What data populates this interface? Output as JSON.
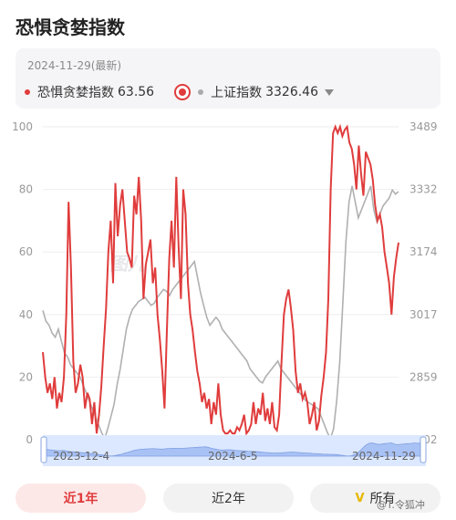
{
  "page": {
    "title": "恐惧贪婪指数"
  },
  "summary": {
    "date": "2024-11-29(最新)",
    "fear_label": "恐惧贪婪指数",
    "fear_value": "63.56",
    "index_label": "上证指数",
    "index_value": "3326.46"
  },
  "colors": {
    "fear": "#e03c3c",
    "index": "#b0b0b0",
    "accent": "#e03c3c",
    "navigator": "#dce8ff"
  },
  "navigator": {
    "start": "2023-12-4",
    "mid": "2024-6-5",
    "end": "2024-11-29"
  },
  "tabs": {
    "one_year": "近1年",
    "two_year": "近2年",
    "all": "所有"
  },
  "watermark": {
    "chart": "图儿",
    "corner": "@T.令狐冲"
  },
  "chart_data": {
    "type": "line",
    "left_axis": {
      "ticks": [
        "100",
        "80",
        "60",
        "40",
        "20",
        "0"
      ],
      "range": [
        0,
        100
      ]
    },
    "right_axis": {
      "ticks": [
        "3489",
        "3332",
        "3174",
        "3017",
        "2859",
        "2702"
      ],
      "range": [
        2702,
        3489
      ]
    },
    "x_range": [
      "2023-12-04",
      "2024-11-29"
    ],
    "series": [
      {
        "name": "恐惧贪婪指数",
        "axis": "left",
        "values": [
          28,
          20,
          15,
          18,
          13,
          20,
          10,
          15,
          12,
          20,
          40,
          76,
          55,
          25,
          15,
          18,
          24,
          20,
          10,
          15,
          13,
          5,
          12,
          2,
          8,
          17,
          30,
          42,
          60,
          70,
          50,
          82,
          65,
          75,
          80,
          70,
          60,
          58,
          55,
          78,
          72,
          84,
          70,
          45,
          56,
          60,
          64,
          50,
          55,
          40,
          32,
          22,
          10,
          35,
          58,
          70,
          55,
          84,
          62,
          45,
          80,
          72,
          50,
          40,
          35,
          28,
          22,
          18,
          12,
          15,
          10,
          13,
          5,
          12,
          8,
          18,
          8,
          3,
          2,
          2,
          3,
          2,
          2,
          4,
          3,
          5,
          8,
          2,
          3,
          5,
          12,
          5,
          10,
          8,
          15,
          6,
          10,
          5,
          12,
          4,
          3,
          8,
          25,
          40,
          45,
          48,
          42,
          35,
          22,
          15,
          18,
          13,
          15,
          12,
          5,
          8,
          12,
          3,
          6,
          14,
          20,
          28,
          45,
          80,
          98,
          100,
          98,
          100,
          97,
          99,
          100,
          95,
          93,
          88,
          80,
          94,
          85,
          78,
          92,
          90,
          88,
          83,
          75,
          70,
          72,
          68,
          60,
          55,
          50,
          40,
          52,
          58,
          63
        ]
      },
      {
        "name": "上证指数",
        "axis": "right",
        "values": [
          3027,
          3000,
          2990,
          2970,
          2960,
          2980,
          2950,
          2920,
          2910,
          2890,
          2880,
          2870,
          2860,
          2840,
          2820,
          2800,
          2780,
          2760,
          2740,
          2720,
          2705,
          2730,
          2760,
          2790,
          2840,
          2880,
          2930,
          2980,
          3010,
          3030,
          3040,
          3050,
          3055,
          3060,
          3050,
          3040,
          3045,
          3060,
          3070,
          3080,
          3075,
          3065,
          3080,
          3090,
          3100,
          3110,
          3120,
          3130,
          3140,
          3150,
          3110,
          3070,
          3040,
          3010,
          2990,
          3000,
          3010,
          3000,
          2980,
          2970,
          2960,
          2950,
          2940,
          2930,
          2920,
          2910,
          2900,
          2880,
          2870,
          2860,
          2850,
          2845,
          2860,
          2870,
          2880,
          2890,
          2900,
          2880,
          2870,
          2860,
          2850,
          2840,
          2830,
          2820,
          2810,
          2800,
          2795,
          2790,
          2785,
          2780,
          2760,
          2740,
          2720,
          2705,
          2730,
          2800,
          2900,
          3050,
          3200,
          3300,
          3340,
          3300,
          3260,
          3280,
          3300,
          3320,
          3340,
          3280,
          3250,
          3270,
          3290,
          3300,
          3310,
          3330,
          3320,
          3326
        ]
      }
    ]
  }
}
